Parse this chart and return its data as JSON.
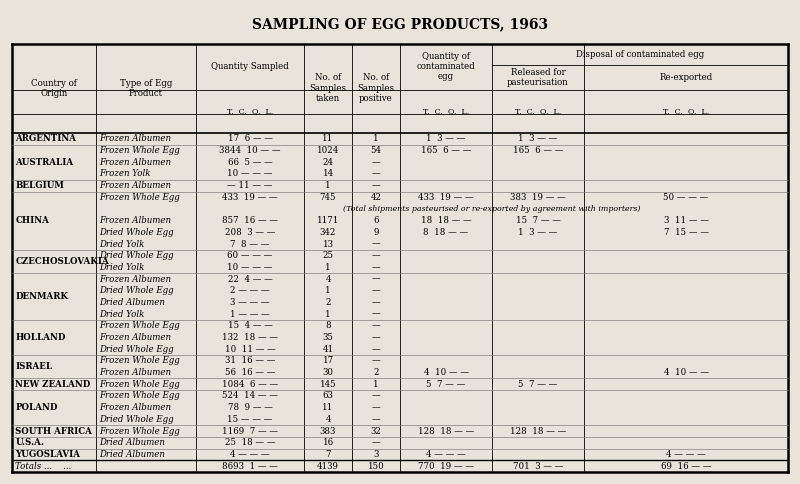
{
  "title": "SAMPLING OF EGG PRODUCTS, 1963",
  "bg_color": "#e8e4dc",
  "title_fontsize": 10,
  "table_fontsize": 6.2,
  "header_fontsize": 6.2,
  "rows": [
    [
      "ARGENTINA",
      "Frozen Albumen",
      "17  6 — —",
      "11",
      "1",
      "1  3 — —",
      "1  3 — —",
      ""
    ],
    [
      "AUSTRALIA",
      "Frozen Whole Egg\nFrozen Albumen\nFrozen Yolk",
      "3844  10 — —\n66  5 — —\n10 — — —",
      "1024\n24\n14",
      "54\n—\n—",
      "165  6 — —\n\n",
      "165  6 — —\n\n",
      "\n\n"
    ],
    [
      "BELGIUM",
      "Frozen Albumen",
      "— 11 — —",
      "1",
      "—",
      "",
      "",
      ""
    ],
    [
      "CHINA",
      "Frozen Whole Egg\n \nFrozen Albumen\nDried Whole Egg\nDried Yolk",
      "433  19 — —\n(Total shipments pasteurised or re-exported by agreement with importers)\n857  16 — —\n208  3 — —\n7  8 — —",
      "745\n \n1171\n342\n13",
      "42\n \n6\n9\n—",
      "433  19 — —\n \n18  18 — —\n8  18 — —\n",
      "383  19 — —\n \n15  7 — —\n1  3 — —\n",
      "50 — — —\n \n3  11 — —\n7  15 — —\n"
    ],
    [
      "CZECHOSLOVAKIA",
      "Dried Whole Egg\nDried Yolk",
      "60 — — —\n10 — — —",
      "25\n1",
      "—\n—",
      "",
      "",
      ""
    ],
    [
      "DENMARK",
      "Frozen Albumen\nDried Whole Egg\nDried Albumen\nDried Yolk",
      "22  4 — —\n2 — — —\n3 — — —\n1 — — —",
      "4\n1\n2\n1",
      "—\n—\n—\n—",
      "",
      "",
      ""
    ],
    [
      "HOLLAND",
      "Frozen Whole Egg\nFrozen Albumen\nDried Whole Egg",
      "15  4 — —\n132  18 — —\n10  11 — —",
      "8\n35\n41",
      "—\n—\n—",
      "",
      "",
      ""
    ],
    [
      "ISRAEL",
      "Frozen Whole Egg\nFrozen Albumen",
      "31  16 — —\n56  16 — —",
      "17\n30",
      "—\n2",
      "\n4  10 — —",
      "",
      "\n4  10 — —"
    ],
    [
      "NEW ZEALAND",
      "Frozen Whole Egg",
      "1084  6 — —",
      "145",
      "1",
      "5  7 — —",
      "5  7 — —",
      ""
    ],
    [
      "POLAND",
      "Frozen Whole Egg\nFrozen Albumen\nDried Whole Egg",
      "524  14 — —\n78  9 — —\n15 — — —",
      "63\n11\n4",
      "—\n—\n—",
      "",
      "",
      ""
    ],
    [
      "SOUTH AFRICA",
      "Frozen Whole Egg",
      "1169  7 — —",
      "383",
      "32",
      "128  18 — —",
      "128  18 — —",
      ""
    ],
    [
      "U.S.A.",
      "Dried Albumen",
      "25  18 — —",
      "16",
      "—",
      "",
      "",
      ""
    ],
    [
      "YUGOSLAVIA",
      "Dried Albumen",
      "4 — — —",
      "7",
      "3",
      "4 — — —",
      "",
      "4 — — —"
    ],
    [
      "Totals ...    ...",
      "",
      "8693  1 — —",
      "4139",
      "150",
      "770  19 — —",
      "701  3 — —",
      "69  16 — —"
    ]
  ]
}
